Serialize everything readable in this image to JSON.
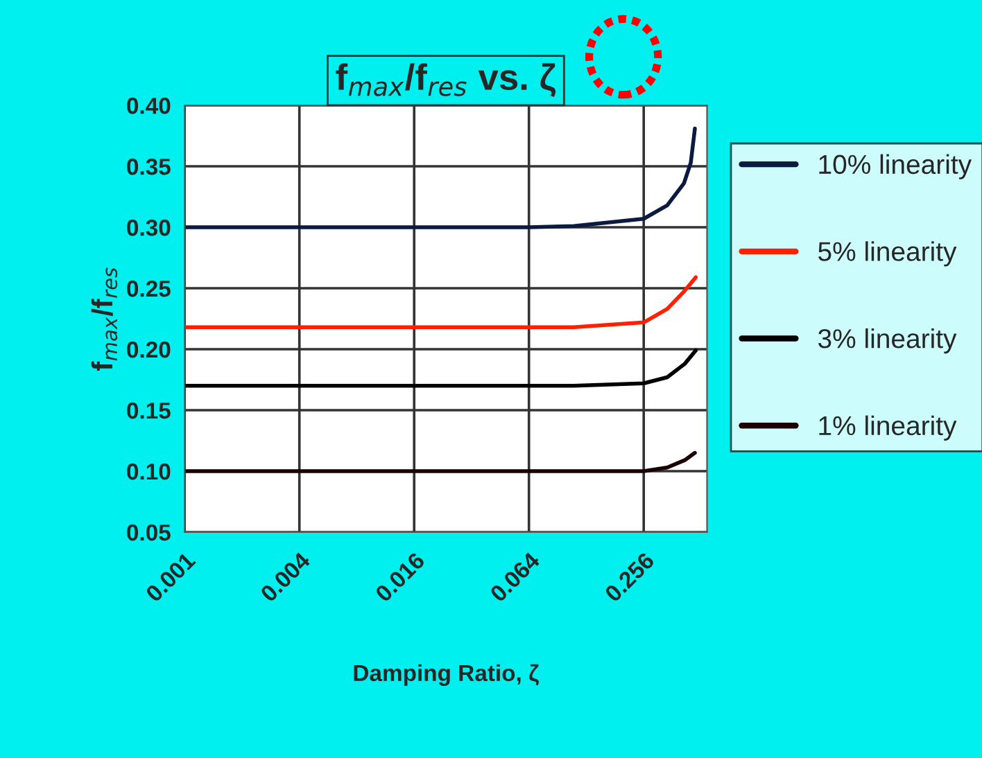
{
  "chart_data": {
    "type": "line",
    "title": "f$_{max}$/f$_{res}$ vs. ζ",
    "xlabel": "Damping Ratio, ζ",
    "ylabel": "f$_{max}$/f$_{res}$",
    "log": "x",
    "xlim": [
      0.001,
      0.55
    ],
    "xticks": [
      0.001,
      0.004,
      0.016,
      0.064,
      0.256
    ],
    "ylim": [
      0.05,
      0.4
    ],
    "yticks": [
      {
        "value": 0.05,
        "label": "0.05"
      },
      {
        "value": 0.1,
        "label": "0.10"
      },
      {
        "value": 0.15,
        "label": "0.15"
      },
      {
        "value": 0.2,
        "label": "0.20"
      },
      {
        "value": 0.25,
        "label": "0.25"
      },
      {
        "value": 0.3,
        "label": "0.30"
      },
      {
        "value": 0.35,
        "label": "0.35"
      },
      {
        "value": 0.4,
        "label": "0.40"
      }
    ],
    "grid": true,
    "legend": "right",
    "marker": "none",
    "line_style": "solid",
    "series": [
      {
        "name": "10% linearity",
        "color": "#0a1a40",
        "x": [
          0.001,
          0.064,
          0.11,
          0.256,
          0.34,
          0.416,
          0.452,
          0.475
        ],
        "values": [
          0.3,
          0.3,
          0.301,
          0.307,
          0.318,
          0.336,
          0.353,
          0.381
        ]
      },
      {
        "name": "5% linearity",
        "color": "#ff2000",
        "x": [
          0.001,
          0.064,
          0.11,
          0.256,
          0.34,
          0.42,
          0.48
        ],
        "values": [
          0.218,
          0.218,
          0.218,
          0.222,
          0.233,
          0.248,
          0.259
        ]
      },
      {
        "name": "3% linearity",
        "color": "#000000",
        "x": [
          0.001,
          0.064,
          0.11,
          0.256,
          0.34,
          0.42,
          0.48
        ],
        "values": [
          0.17,
          0.17,
          0.17,
          0.172,
          0.177,
          0.188,
          0.199
        ]
      },
      {
        "name": "1% linearity",
        "color": "#1a0000",
        "x": [
          0.001,
          0.064,
          0.11,
          0.256,
          0.34,
          0.42,
          0.475
        ],
        "values": [
          0.1,
          0.1,
          0.1,
          0.1,
          0.103,
          0.109,
          0.115
        ]
      }
    ]
  }
}
